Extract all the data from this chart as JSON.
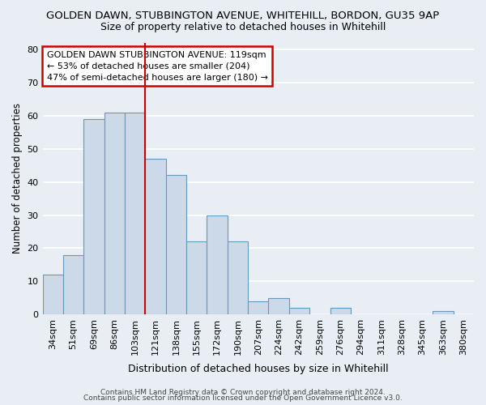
{
  "title1": "GOLDEN DAWN, STUBBINGTON AVENUE, WHITEHILL, BORDON, GU35 9AP",
  "title2": "Size of property relative to detached houses in Whitehill",
  "xlabel": "Distribution of detached houses by size in Whitehill",
  "ylabel": "Number of detached properties",
  "bar_labels": [
    "34sqm",
    "51sqm",
    "69sqm",
    "86sqm",
    "103sqm",
    "121sqm",
    "138sqm",
    "155sqm",
    "172sqm",
    "190sqm",
    "207sqm",
    "224sqm",
    "242sqm",
    "259sqm",
    "276sqm",
    "294sqm",
    "311sqm",
    "328sqm",
    "345sqm",
    "363sqm",
    "380sqm"
  ],
  "bar_values": [
    12,
    18,
    59,
    61,
    61,
    47,
    42,
    22,
    30,
    22,
    4,
    5,
    2,
    0,
    2,
    0,
    0,
    0,
    0,
    1,
    0
  ],
  "bar_color": "#ccd9e8",
  "bar_edge_color": "#6699bb",
  "ylim": [
    0,
    82
  ],
  "yticks": [
    0,
    10,
    20,
    30,
    40,
    50,
    60,
    70,
    80
  ],
  "red_line_index": 5,
  "annotation_text": "GOLDEN DAWN STUBBINGTON AVENUE: 119sqm\n← 53% of detached houses are smaller (204)\n47% of semi-detached houses are larger (180) →",
  "annotation_box_color": "#ffffff",
  "annotation_box_edge": "#cc0000",
  "footer1": "Contains HM Land Registry data © Crown copyright and database right 2024.",
  "footer2": "Contains public sector information licensed under the Open Government Licence v3.0.",
  "background_color": "#e8eef4",
  "plot_bg_color": "#e8eef4",
  "grid_color": "#ffffff",
  "title1_fontsize": 9.5,
  "title2_fontsize": 9.0,
  "xlabel_fontsize": 9.0,
  "ylabel_fontsize": 8.5,
  "tick_fontsize": 8.0,
  "annotation_fontsize": 8.0,
  "footer_fontsize": 6.5
}
